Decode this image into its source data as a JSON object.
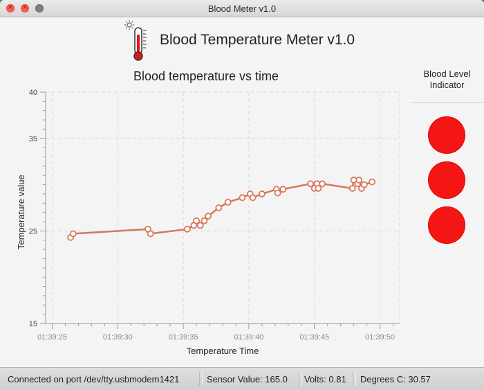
{
  "window": {
    "title": "Blood Meter v1.0"
  },
  "header": {
    "title": "Blood Temperature Meter v1.0",
    "icon": "thermometer-icon"
  },
  "side": {
    "title_line1": "Blood Level",
    "title_line2": "Indicator",
    "indicators": 3,
    "indicator_color": "#f41515"
  },
  "status": {
    "connection": "Connected on port /dev/tty.usbmodem1421",
    "sensor": "Sensor Value: 165.0",
    "volts": "Volts: 0.81",
    "degrees": "Degrees C: 30.57"
  },
  "chart_data": {
    "type": "line",
    "title": "Blood temperature vs time",
    "xlabel": "Temperature Time",
    "ylabel": "Temperature value",
    "ylim": [
      15,
      40
    ],
    "yticks": [
      "15",
      "25",
      "35",
      "40"
    ],
    "xticks": [
      "01:39:25",
      "01:39:30",
      "01:39:35",
      "01:39:40",
      "01:39:45",
      "01:39:50"
    ],
    "xlim_seconds": [
      24.5,
      51.5
    ],
    "grid": true,
    "line_color": "#d9765a",
    "series": [
      {
        "x": [
          "01:39:26.4",
          "01:39:26.6",
          "01:39:32.3",
          "01:39:32.5",
          "01:39:35.3",
          "01:39:35.8",
          "01:39:36.0",
          "01:39:36.3",
          "01:39:36.6",
          "01:39:36.9",
          "01:39:37.7",
          "01:39:38.4",
          "01:39:39.5",
          "01:39:40.1",
          "01:39:40.3",
          "01:39:41.0",
          "01:39:42.1",
          "01:39:42.2",
          "01:39:42.6",
          "01:39:44.7",
          "01:39:45.0",
          "01:39:45.2",
          "01:39:45.3",
          "01:39:45.6",
          "01:39:47.9",
          "01:39:48.0",
          "01:39:48.3",
          "01:39:48.4",
          "01:39:48.6",
          "01:39:48.8",
          "01:39:49.4"
        ],
        "y": [
          24.3,
          24.7,
          25.2,
          24.7,
          25.2,
          25.6,
          26.1,
          25.6,
          26.1,
          26.6,
          27.5,
          28.1,
          28.6,
          29.0,
          28.6,
          29.0,
          29.5,
          29.1,
          29.5,
          30.1,
          29.6,
          30.1,
          29.6,
          30.1,
          29.6,
          30.5,
          30.1,
          30.5,
          29.6,
          30.0,
          30.3
        ]
      }
    ]
  }
}
